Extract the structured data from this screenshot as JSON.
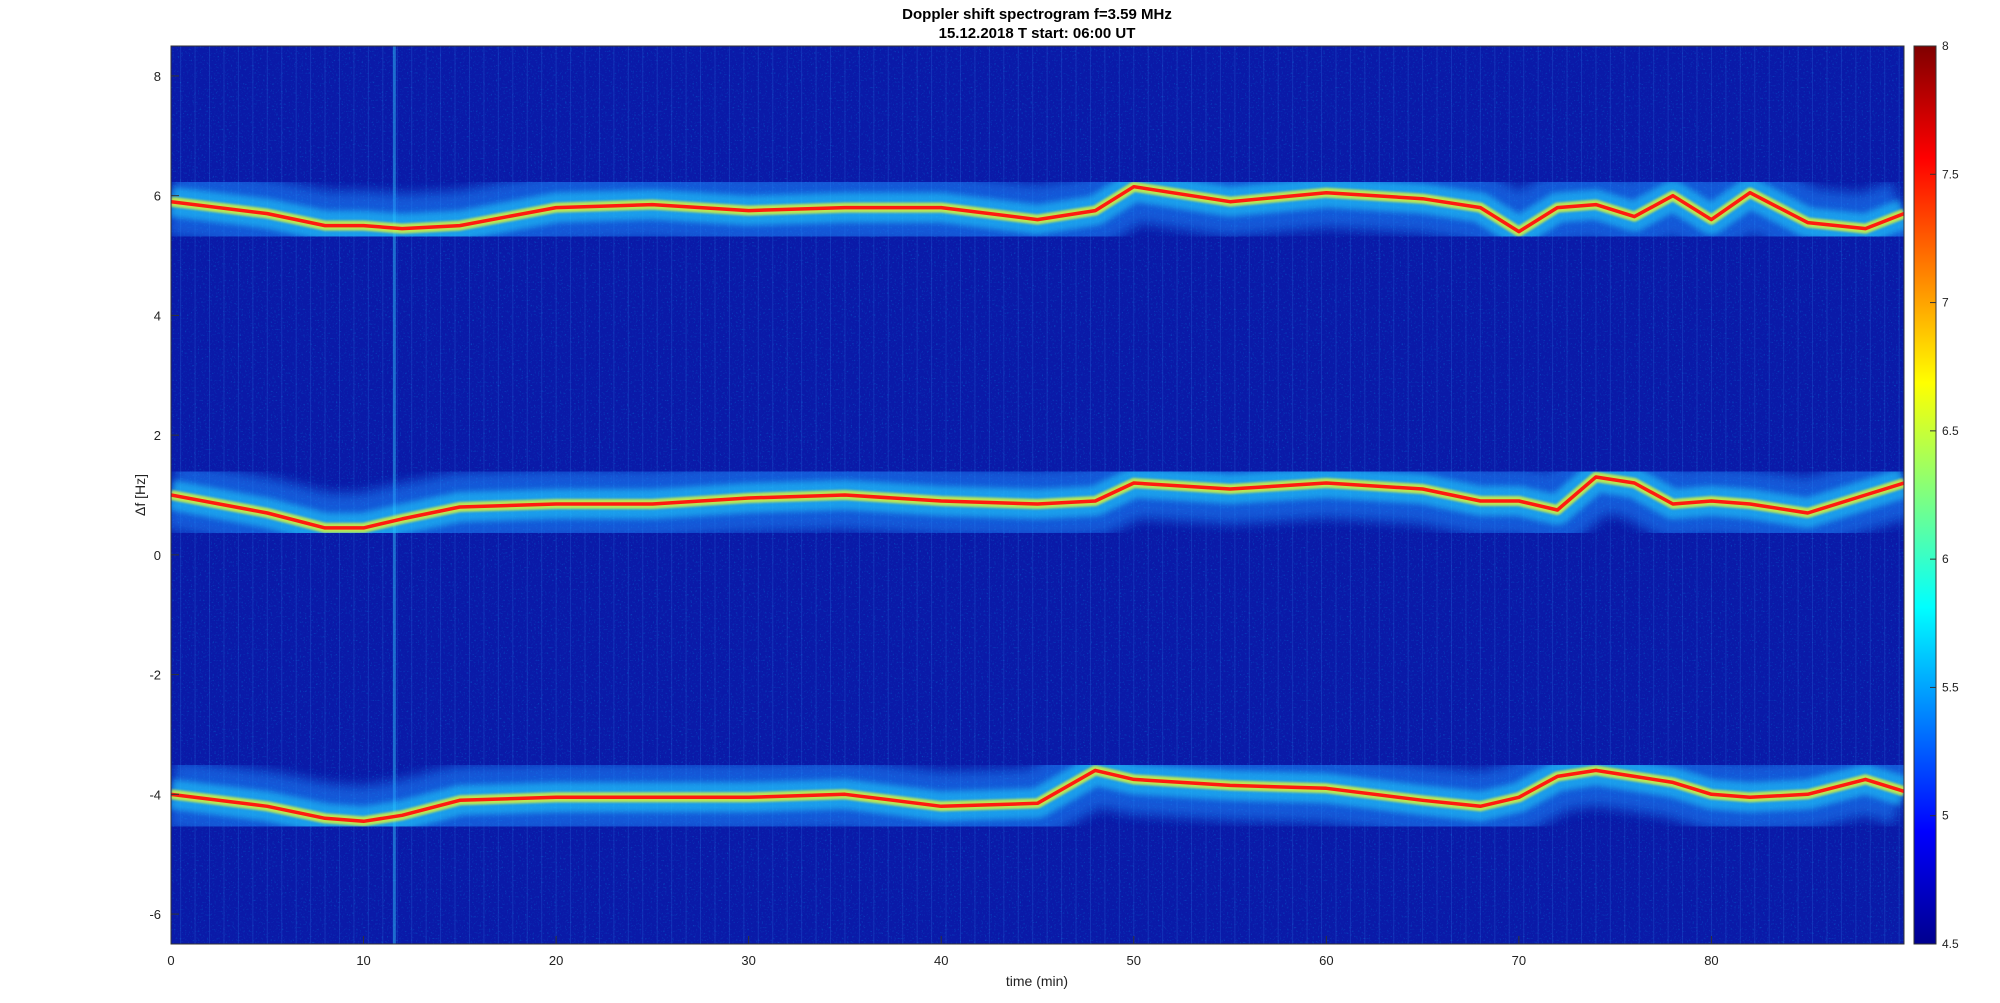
{
  "chart_data": {
    "type": "heatmap",
    "title": "Doppler shift spectrogram f=3.59 MHz",
    "subtitle": "15.12.2018   T start: 06:00 UT",
    "xlabel": "time (min)",
    "ylabel": "Δf [Hz]",
    "xlim": [
      0,
      90
    ],
    "ylim": [
      -6.5,
      8.5
    ],
    "x_ticks": [
      "0",
      "10",
      "20",
      "30",
      "40",
      "50",
      "60",
      "70",
      "80"
    ],
    "y_ticks": [
      "-6",
      "-4",
      "-2",
      "0",
      "2",
      "4",
      "6",
      "8"
    ],
    "colorbar": {
      "colormap": "jet",
      "clim": [
        4.5,
        8
      ],
      "ticks": [
        "4.5",
        "5",
        "5.5",
        "6",
        "6.5",
        "7",
        "7.5",
        "8"
      ]
    },
    "series": [
      {
        "t": [
          0,
          5,
          8,
          10,
          12,
          15,
          20,
          25,
          30,
          35,
          40,
          45,
          48,
          50,
          55,
          60,
          65,
          68,
          70,
          72,
          74,
          76,
          78,
          80,
          82,
          85,
          88,
          90
        ],
        "df": [
          5.9,
          5.7,
          5.5,
          5.5,
          5.45,
          5.5,
          5.8,
          5.85,
          5.75,
          5.8,
          5.8,
          5.6,
          5.75,
          6.15,
          5.9,
          6.05,
          5.95,
          5.8,
          5.4,
          5.8,
          5.85,
          5.65,
          6.0,
          5.6,
          6.05,
          5.55,
          5.45,
          5.7
        ]
      },
      {
        "t": [
          0,
          5,
          8,
          10,
          12,
          15,
          20,
          25,
          30,
          35,
          40,
          45,
          48,
          50,
          55,
          60,
          65,
          68,
          70,
          72,
          74,
          76,
          78,
          80,
          82,
          85,
          88,
          90
        ],
        "df": [
          1.0,
          0.7,
          0.45,
          0.45,
          0.6,
          0.8,
          0.85,
          0.85,
          0.95,
          1.0,
          0.9,
          0.85,
          0.9,
          1.2,
          1.1,
          1.2,
          1.1,
          0.9,
          0.9,
          0.75,
          1.3,
          1.2,
          0.85,
          0.9,
          0.85,
          0.7,
          1.0,
          1.2
        ]
      },
      {
        "t": [
          0,
          5,
          8,
          10,
          12,
          15,
          20,
          25,
          30,
          35,
          40,
          45,
          48,
          50,
          55,
          60,
          65,
          68,
          70,
          72,
          74,
          76,
          78,
          80,
          82,
          85,
          88,
          90
        ],
        "df": [
          -4.0,
          -4.2,
          -4.4,
          -4.45,
          -4.35,
          -4.1,
          -4.05,
          -4.05,
          -4.05,
          -4.0,
          -4.2,
          -4.15,
          -3.6,
          -3.75,
          -3.85,
          -3.9,
          -4.1,
          -4.2,
          -4.05,
          -3.7,
          -3.6,
          -3.7,
          -3.8,
          -4.0,
          -4.05,
          -4.0,
          -3.75,
          -3.95
        ]
      }
    ]
  }
}
